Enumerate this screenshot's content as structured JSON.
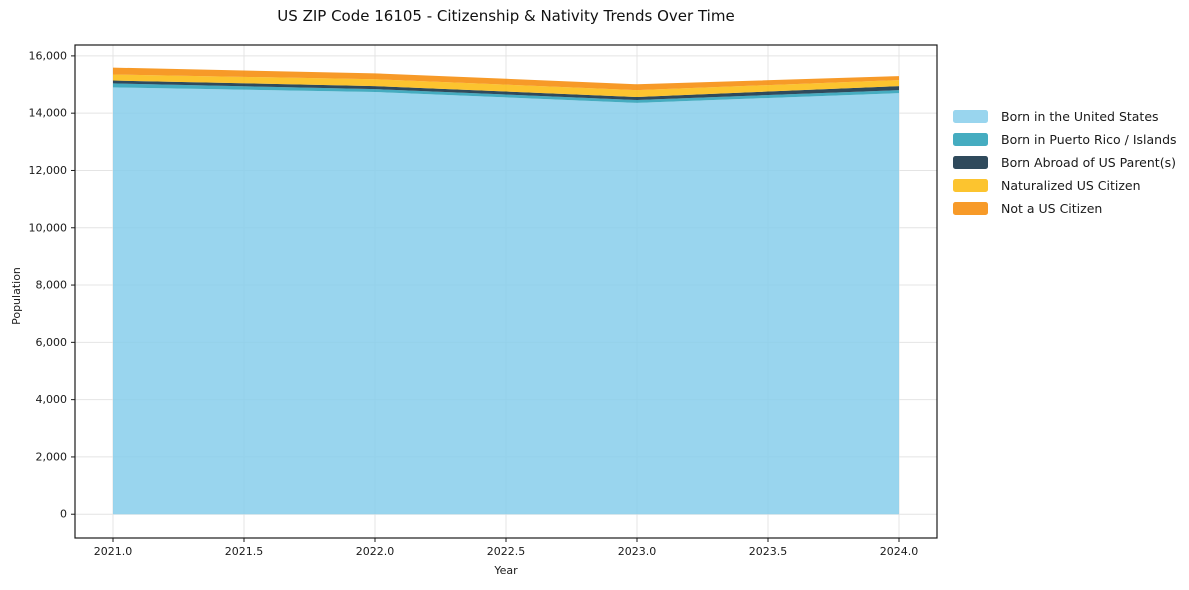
{
  "chart_data": {
    "type": "area",
    "stacked": true,
    "title": "US ZIP Code 16105 - Citizenship & Nativity Trends Over Time",
    "xlabel": "Year",
    "ylabel": "Population",
    "x": [
      2021,
      2022,
      2023,
      2024
    ],
    "series": [
      {
        "name": "Born in the United States",
        "color": "#87CEEB",
        "values": [
          14900,
          14740,
          14360,
          14700
        ]
      },
      {
        "name": "Born in Puerto Rico / Islands",
        "color": "#249EB5",
        "values": [
          140,
          100,
          100,
          105
        ]
      },
      {
        "name": "Born Abroad of US Parent(s)",
        "color": "#0A2A3F",
        "values": [
          100,
          105,
          105,
          140
        ]
      },
      {
        "name": "Naturalized US Citizen",
        "color": "#FBBA0A",
        "values": [
          210,
          240,
          240,
          210
        ]
      },
      {
        "name": "Not a US Citizen",
        "color": "#F68802",
        "values": [
          240,
          205,
          205,
          140
        ]
      }
    ],
    "fill_opacity": 0.85,
    "x_ticks": [
      "2021.0",
      "2021.5",
      "2022.0",
      "2022.5",
      "2023.0",
      "2023.5",
      "2024.0"
    ],
    "x_tick_values": [
      2021,
      2021.5,
      2022,
      2022.5,
      2023,
      2023.5,
      2024
    ],
    "y_ticks": [
      "0",
      "2,000",
      "4,000",
      "6,000",
      "8,000",
      "10,000",
      "12,000",
      "14,000",
      "16,000"
    ],
    "y_tick_values": [
      0,
      2000,
      4000,
      6000,
      8000,
      10000,
      12000,
      14000,
      16000
    ],
    "xlim": [
      2020.855,
      2024.145
    ],
    "ylim": [
      -830,
      16380
    ],
    "grid": true,
    "grid_color": "#e4e4e4",
    "spine_color": "#1a1a1a",
    "legend_position": "right-outside"
  }
}
